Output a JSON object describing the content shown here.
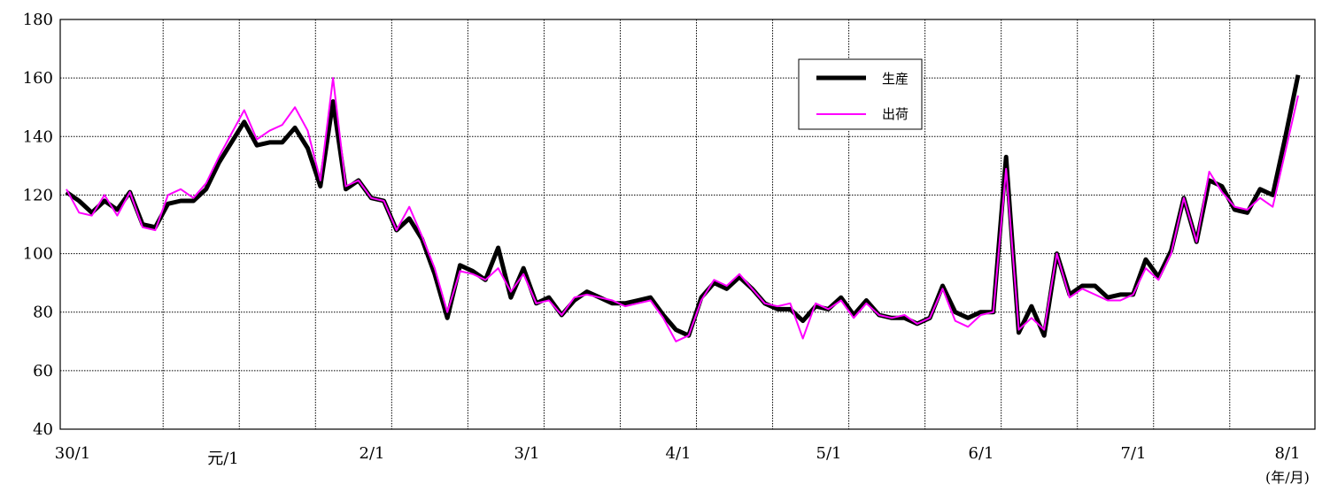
{
  "chart_data": {
    "type": "line",
    "title": "",
    "xlabel": "",
    "ylabel": "",
    "x_unit_label": "(年/月)",
    "ylim": [
      40,
      180
    ],
    "yticks": [
      40,
      60,
      80,
      100,
      120,
      140,
      160,
      180
    ],
    "grid": true,
    "legend_position": "top-right",
    "x_tick_labels": [
      "30/1",
      "元/1",
      "2/1",
      "3/1",
      "4/1",
      "5/1",
      "6/1",
      "7/1",
      "8/1"
    ],
    "x_tick_index": [
      0,
      12,
      24,
      36,
      48,
      60,
      72,
      84,
      96
    ],
    "n_points": 98,
    "series": [
      {
        "name": "生産",
        "color": "#000000",
        "values": [
          121,
          118,
          114,
          118,
          115,
          121,
          110,
          109,
          117,
          118,
          118,
          122,
          131,
          138,
          145,
          137,
          138,
          138,
          143,
          136,
          123,
          152,
          122,
          125,
          119,
          118,
          108,
          112,
          105,
          93,
          78,
          96,
          94,
          91,
          102,
          85,
          95,
          83,
          85,
          79,
          84,
          87,
          85,
          83,
          83,
          84,
          85,
          79,
          74,
          72,
          85,
          90,
          88,
          92,
          88,
          83,
          81,
          81,
          77,
          82,
          81,
          85,
          79,
          84,
          79,
          78,
          78,
          76,
          78,
          89,
          80,
          78,
          80,
          80,
          133,
          73,
          82,
          72,
          100,
          86,
          89,
          89,
          85,
          86,
          86,
          98,
          92,
          101,
          119,
          104,
          125,
          123,
          115,
          114,
          122,
          120,
          140,
          161
        ]
      },
      {
        "name": "出荷",
        "color": "#ff00ff",
        "values": [
          122,
          114,
          113,
          120,
          113,
          121,
          109,
          108,
          120,
          122,
          119,
          124,
          133,
          141,
          149,
          139,
          142,
          144,
          150,
          142,
          125,
          160,
          123,
          125,
          119,
          118,
          108,
          116,
          106,
          95,
          80,
          94,
          93,
          91,
          95,
          87,
          93,
          83,
          84,
          79,
          85,
          86,
          85,
          84,
          82,
          83,
          84,
          78,
          70,
          72,
          84,
          91,
          89,
          93,
          88,
          83,
          82,
          83,
          71,
          83,
          81,
          84,
          78,
          83,
          79,
          78,
          79,
          76,
          78,
          88,
          77,
          75,
          79,
          80,
          129,
          74,
          78,
          74,
          100,
          85,
          88,
          86,
          84,
          84,
          86,
          95,
          91,
          100,
          119,
          104,
          128,
          121,
          116,
          115,
          119,
          116,
          135,
          154
        ]
      }
    ]
  }
}
